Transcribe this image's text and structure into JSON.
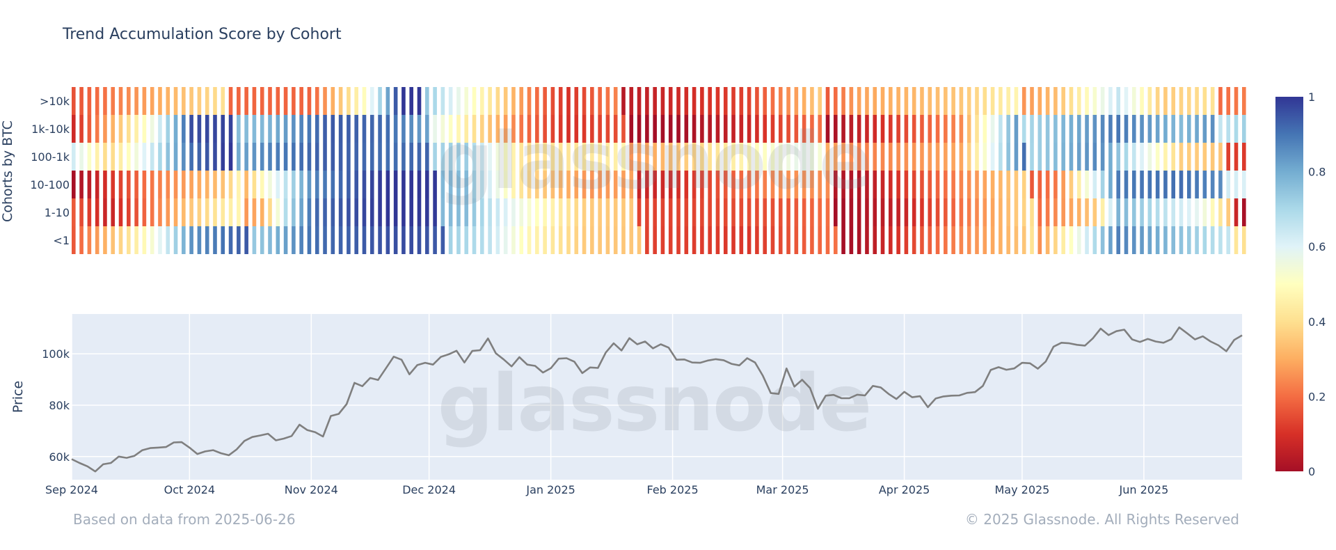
{
  "chart_data": [
    {
      "type": "heatmap",
      "title": "Trend Accumulation Score by Cohort",
      "ylabel": "Cohorts by BTC",
      "rows": [
        ">10k",
        "1k-10k",
        "100-1k",
        "10-100",
        "1-10",
        "<1"
      ],
      "x_range": [
        "2024-09-01",
        "2025-06-26"
      ],
      "colorscale": [
        "#a50f26",
        "#d73027",
        "#f46d43",
        "#fdae61",
        "#fee090",
        "#ffffbf",
        "#e0f3f8",
        "#abd9e9",
        "#74add1",
        "#4575b4",
        "#313695"
      ],
      "colorbar": {
        "range": [
          0,
          1
        ],
        "ticks": [
          "0",
          "0.2",
          "0.4",
          "0.6",
          "0.8",
          "1"
        ]
      },
      "segments": [
        [
          [
            "2024-09-01",
            0.22
          ],
          [
            "2024-10-10",
            0.3
          ],
          [
            "2024-11-01",
            0.2
          ],
          [
            "2024-11-14",
            0.45
          ],
          [
            "2024-11-21",
            0.8
          ],
          [
            "2024-11-24",
            1.0
          ],
          [
            "2024-12-10",
            0.6
          ],
          [
            "2024-12-21",
            0.35
          ],
          [
            "2024-12-27",
            0.2
          ],
          [
            "2025-01-05",
            0.05
          ],
          [
            "2025-01-20",
            0.15
          ],
          [
            "2025-02-20",
            0.1
          ],
          [
            "2025-03-05",
            0.2
          ],
          [
            "2025-03-20",
            0.35
          ],
          [
            "2025-04-15",
            0.3
          ],
          [
            "2025-05-10",
            0.4
          ],
          [
            "2025-05-25",
            0.65
          ],
          [
            "2025-06-05",
            0.3
          ],
          [
            "2025-06-26",
            0.3
          ]
        ],
        [
          [
            "2024-09-01",
            0.15
          ],
          [
            "2024-09-20",
            0.5
          ],
          [
            "2024-10-01",
            0.9
          ],
          [
            "2024-10-20",
            0.85
          ],
          [
            "2024-11-05",
            0.95
          ],
          [
            "2024-11-20",
            0.85
          ],
          [
            "2024-12-01",
            0.7
          ],
          [
            "2024-12-15",
            0.4
          ],
          [
            "2024-12-25",
            0.2
          ],
          [
            "2025-01-05",
            0.05
          ],
          [
            "2025-02-20",
            0.05
          ],
          [
            "2025-03-10",
            0.1
          ],
          [
            "2025-04-15",
            0.2
          ],
          [
            "2025-05-01",
            0.8
          ],
          [
            "2025-05-25",
            0.9
          ],
          [
            "2025-06-10",
            0.7
          ],
          [
            "2025-06-26",
            0.8
          ]
        ],
        [
          [
            "2024-09-01",
            0.7
          ],
          [
            "2024-09-10",
            0.4
          ],
          [
            "2024-10-01",
            0.85
          ],
          [
            "2024-10-20",
            0.95
          ],
          [
            "2024-11-05",
            0.95
          ],
          [
            "2024-11-20",
            0.85
          ],
          [
            "2024-12-10",
            0.8
          ],
          [
            "2024-12-25",
            0.4
          ],
          [
            "2025-01-15",
            0.35
          ],
          [
            "2025-02-01",
            0.4
          ],
          [
            "2025-02-20",
            0.45
          ],
          [
            "2025-03-05",
            0.5
          ],
          [
            "2025-03-20",
            0.3
          ],
          [
            "2025-04-15",
            0.25
          ],
          [
            "2025-05-01",
            0.8
          ],
          [
            "2025-05-20",
            0.9
          ],
          [
            "2025-06-10",
            0.3
          ],
          [
            "2025-06-26",
            0.2
          ]
        ],
        [
          [
            "2024-09-01",
            0.08
          ],
          [
            "2024-09-20",
            0.2
          ],
          [
            "2024-10-10",
            0.25
          ],
          [
            "2024-10-20",
            0.6
          ],
          [
            "2024-11-01",
            0.9
          ],
          [
            "2024-11-20",
            0.95
          ],
          [
            "2024-12-10",
            0.85
          ],
          [
            "2024-12-25",
            0.4
          ],
          [
            "2025-01-10",
            0.2
          ],
          [
            "2025-02-01",
            0.15
          ],
          [
            "2025-03-01",
            0.2
          ],
          [
            "2025-03-20",
            0.1
          ],
          [
            "2025-04-15",
            0.2
          ],
          [
            "2025-05-10",
            0.3
          ],
          [
            "2025-05-25",
            0.9
          ],
          [
            "2025-06-10",
            0.85
          ],
          [
            "2025-06-26",
            0.7
          ]
        ],
        [
          [
            "2024-09-01",
            0.25
          ],
          [
            "2024-09-10",
            0.1
          ],
          [
            "2024-10-01",
            0.3
          ],
          [
            "2024-10-20",
            0.4
          ],
          [
            "2024-10-25",
            0.75
          ],
          [
            "2024-11-01",
            0.95
          ],
          [
            "2024-11-20",
            0.95
          ],
          [
            "2024-12-10",
            0.85
          ],
          [
            "2024-12-25",
            0.55
          ],
          [
            "2025-01-10",
            0.3
          ],
          [
            "2025-02-01",
            0.2
          ],
          [
            "2025-03-01",
            0.1
          ],
          [
            "2025-04-01",
            0.1
          ],
          [
            "2025-04-20",
            0.2
          ],
          [
            "2025-05-20",
            0.4
          ],
          [
            "2025-05-25",
            0.8
          ],
          [
            "2025-06-15",
            0.5
          ],
          [
            "2025-06-26",
            0.1
          ]
        ],
        [
          [
            "2024-09-01",
            0.25
          ],
          [
            "2024-09-20",
            0.5
          ],
          [
            "2024-10-01",
            0.8
          ],
          [
            "2024-10-20",
            0.85
          ],
          [
            "2024-11-01",
            0.95
          ],
          [
            "2024-11-25",
            0.9
          ],
          [
            "2024-12-15",
            0.75
          ],
          [
            "2024-12-25",
            0.5
          ],
          [
            "2025-01-10",
            0.3
          ],
          [
            "2025-02-01",
            0.2
          ],
          [
            "2025-02-20",
            0.1
          ],
          [
            "2025-03-20",
            0.1
          ],
          [
            "2025-04-10",
            0.2
          ],
          [
            "2025-05-01",
            0.25
          ],
          [
            "2025-05-25",
            0.9
          ],
          [
            "2025-06-10",
            0.7
          ],
          [
            "2025-06-26",
            0.5
          ]
        ]
      ]
    },
    {
      "type": "line",
      "ylabel": "Price",
      "line_color": "#7f7f7f",
      "background": "#e5ecf6",
      "yticks": [
        "60k",
        "80k",
        "100k"
      ],
      "ytick_values": [
        60000,
        80000,
        100000
      ],
      "xticks": [
        "Sep 2024",
        "Oct 2024",
        "Nov 2024",
        "Dec 2024",
        "Jan 2025",
        "Feb 2025",
        "Mar 2025",
        "Apr 2025",
        "May 2025",
        "Jun 2025"
      ],
      "xtick_dates": [
        "2024-09-01",
        "2024-10-01",
        "2024-11-01",
        "2024-12-01",
        "2025-01-01",
        "2025-02-01",
        "2025-03-01",
        "2025-04-01",
        "2025-05-01",
        "2025-06-01"
      ],
      "ylim": [
        51000,
        115500
      ],
      "points": [
        [
          "2024-09-01",
          59000
        ],
        [
          "2024-09-03",
          57500
        ],
        [
          "2024-09-05",
          56200
        ],
        [
          "2024-09-07",
          54200
        ],
        [
          "2024-09-09",
          57000
        ],
        [
          "2024-09-11",
          57500
        ],
        [
          "2024-09-13",
          60000
        ],
        [
          "2024-09-15",
          59500
        ],
        [
          "2024-09-17",
          60300
        ],
        [
          "2024-09-19",
          62500
        ],
        [
          "2024-09-21",
          63300
        ],
        [
          "2024-09-23",
          63500
        ],
        [
          "2024-09-25",
          63700
        ],
        [
          "2024-09-27",
          65500
        ],
        [
          "2024-09-29",
          65600
        ],
        [
          "2024-10-01",
          63500
        ],
        [
          "2024-10-03",
          61000
        ],
        [
          "2024-10-05",
          62000
        ],
        [
          "2024-10-07",
          62500
        ],
        [
          "2024-10-09",
          61300
        ],
        [
          "2024-10-11",
          60500
        ],
        [
          "2024-10-13",
          62800
        ],
        [
          "2024-10-15",
          66100
        ],
        [
          "2024-10-17",
          67600
        ],
        [
          "2024-10-19",
          68200
        ],
        [
          "2024-10-21",
          68900
        ],
        [
          "2024-10-23",
          66300
        ],
        [
          "2024-10-25",
          67000
        ],
        [
          "2024-10-27",
          68000
        ],
        [
          "2024-10-29",
          72400
        ],
        [
          "2024-10-31",
          70300
        ],
        [
          "2024-11-02",
          69500
        ],
        [
          "2024-11-04",
          67800
        ],
        [
          "2024-11-06",
          75800
        ],
        [
          "2024-11-08",
          76600
        ],
        [
          "2024-11-10",
          80400
        ],
        [
          "2024-11-12",
          88700
        ],
        [
          "2024-11-14",
          87400
        ],
        [
          "2024-11-16",
          90600
        ],
        [
          "2024-11-18",
          89800
        ],
        [
          "2024-11-20",
          94300
        ],
        [
          "2024-11-22",
          98900
        ],
        [
          "2024-11-24",
          97700
        ],
        [
          "2024-11-26",
          92000
        ],
        [
          "2024-11-28",
          95600
        ],
        [
          "2024-11-30",
          96500
        ],
        [
          "2024-12-02",
          95800
        ],
        [
          "2024-12-04",
          98800
        ],
        [
          "2024-12-06",
          99800
        ],
        [
          "2024-12-08",
          101200
        ],
        [
          "2024-12-10",
          96600
        ],
        [
          "2024-12-12",
          101100
        ],
        [
          "2024-12-14",
          101400
        ],
        [
          "2024-12-16",
          106000
        ],
        [
          "2024-12-18",
          100200
        ],
        [
          "2024-12-20",
          97800
        ],
        [
          "2024-12-22",
          95100
        ],
        [
          "2024-12-24",
          98700
        ],
        [
          "2024-12-26",
          95800
        ],
        [
          "2024-12-28",
          95300
        ],
        [
          "2024-12-30",
          92700
        ],
        [
          "2025-01-01",
          94400
        ],
        [
          "2025-01-03",
          98100
        ],
        [
          "2025-01-05",
          98300
        ],
        [
          "2025-01-07",
          96900
        ],
        [
          "2025-01-09",
          92500
        ],
        [
          "2025-01-11",
          94700
        ],
        [
          "2025-01-13",
          94500
        ],
        [
          "2025-01-15",
          100500
        ],
        [
          "2025-01-17",
          104100
        ],
        [
          "2025-01-19",
          101300
        ],
        [
          "2025-01-21",
          106100
        ],
        [
          "2025-01-23",
          103700
        ],
        [
          "2025-01-25",
          104800
        ],
        [
          "2025-01-27",
          102100
        ],
        [
          "2025-01-29",
          103700
        ],
        [
          "2025-01-31",
          102400
        ],
        [
          "2025-02-02",
          97700
        ],
        [
          "2025-02-04",
          97800
        ],
        [
          "2025-02-06",
          96600
        ],
        [
          "2025-02-08",
          96500
        ],
        [
          "2025-02-10",
          97400
        ],
        [
          "2025-02-12",
          97900
        ],
        [
          "2025-02-14",
          97500
        ],
        [
          "2025-02-16",
          96100
        ],
        [
          "2025-02-18",
          95500
        ],
        [
          "2025-02-20",
          98300
        ],
        [
          "2025-02-22",
          96600
        ],
        [
          "2025-02-24",
          91400
        ],
        [
          "2025-02-26",
          84700
        ],
        [
          "2025-02-28",
          84400
        ],
        [
          "2025-03-02",
          94300
        ],
        [
          "2025-03-04",
          87200
        ],
        [
          "2025-03-06",
          89900
        ],
        [
          "2025-03-08",
          86700
        ],
        [
          "2025-03-10",
          78600
        ],
        [
          "2025-03-12",
          83700
        ],
        [
          "2025-03-14",
          84000
        ],
        [
          "2025-03-16",
          82700
        ],
        [
          "2025-03-18",
          82700
        ],
        [
          "2025-03-20",
          84100
        ],
        [
          "2025-03-22",
          83800
        ],
        [
          "2025-03-24",
          87500
        ],
        [
          "2025-03-26",
          86900
        ],
        [
          "2025-03-28",
          84400
        ],
        [
          "2025-03-30",
          82400
        ],
        [
          "2025-04-01",
          85200
        ],
        [
          "2025-04-03",
          83100
        ],
        [
          "2025-04-05",
          83500
        ],
        [
          "2025-04-07",
          79200
        ],
        [
          "2025-04-09",
          82600
        ],
        [
          "2025-04-11",
          83400
        ],
        [
          "2025-04-13",
          83700
        ],
        [
          "2025-04-15",
          83800
        ],
        [
          "2025-04-17",
          84800
        ],
        [
          "2025-04-19",
          85100
        ],
        [
          "2025-04-21",
          87500
        ],
        [
          "2025-04-23",
          93700
        ],
        [
          "2025-04-25",
          94800
        ],
        [
          "2025-04-27",
          93800
        ],
        [
          "2025-04-29",
          94300
        ],
        [
          "2025-05-01",
          96500
        ],
        [
          "2025-05-03",
          96300
        ],
        [
          "2025-05-05",
          94200
        ],
        [
          "2025-05-07",
          97000
        ],
        [
          "2025-05-09",
          102800
        ],
        [
          "2025-05-11",
          104300
        ],
        [
          "2025-05-13",
          104100
        ],
        [
          "2025-05-15",
          103500
        ],
        [
          "2025-05-17",
          103200
        ],
        [
          "2025-05-19",
          106000
        ],
        [
          "2025-05-21",
          109800
        ],
        [
          "2025-05-23",
          107300
        ],
        [
          "2025-05-25",
          108800
        ],
        [
          "2025-05-27",
          109400
        ],
        [
          "2025-05-29",
          105600
        ],
        [
          "2025-05-31",
          104600
        ],
        [
          "2025-06-02",
          105800
        ],
        [
          "2025-06-04",
          104800
        ],
        [
          "2025-06-06",
          104300
        ],
        [
          "2025-06-08",
          105700
        ],
        [
          "2025-06-10",
          110300
        ],
        [
          "2025-06-12",
          108000
        ],
        [
          "2025-06-14",
          105600
        ],
        [
          "2025-06-16",
          106800
        ],
        [
          "2025-06-18",
          104800
        ],
        [
          "2025-06-20",
          103300
        ],
        [
          "2025-06-22",
          101000
        ],
        [
          "2025-06-24",
          105400
        ],
        [
          "2025-06-26",
          107200
        ]
      ]
    }
  ],
  "watermark": "glassnode",
  "footer": {
    "left": "Based on data from 2025-06-26",
    "right": "© 2025 Glassnode. All Rights Reserved"
  }
}
